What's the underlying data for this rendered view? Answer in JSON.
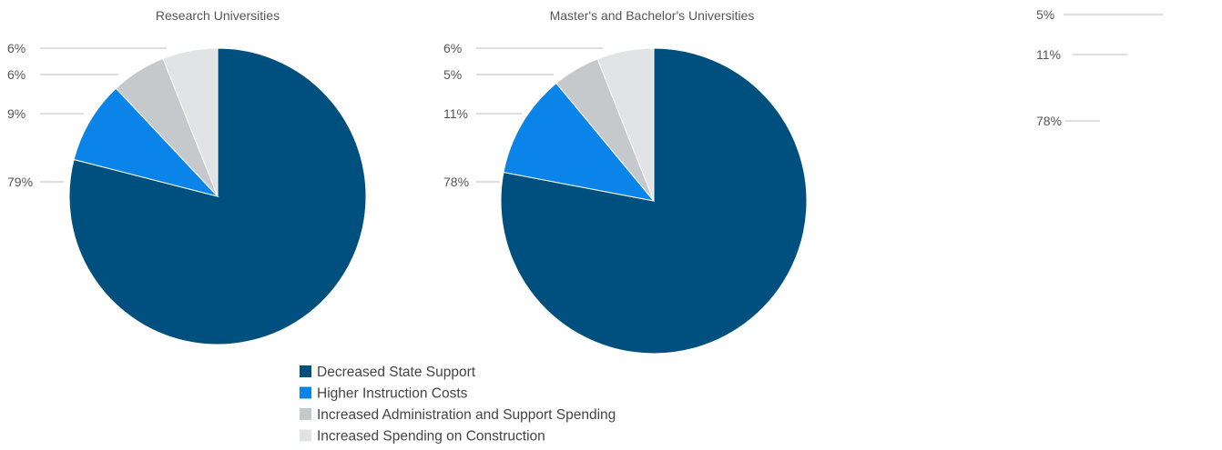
{
  "colors": {
    "decreased_state_support": "#00507f",
    "higher_instruction_costs": "#0a84e8",
    "increased_administration": "#c6c9cb",
    "increased_construction": "#e2e3e5",
    "leader_line": "#bdbdbd",
    "label_text": "#555555"
  },
  "legend": {
    "items": [
      {
        "label": "Decreased State Support",
        "color": "#00507f"
      },
      {
        "label": "Higher Instruction Costs",
        "color": "#0a84e8"
      },
      {
        "label": "Increased Administration and Support Spending",
        "color": "#c6c9cb"
      },
      {
        "label": "Increased Spending on Construction",
        "color": "#e2e3e5"
      }
    ]
  },
  "chart_data": [
    {
      "type": "pie",
      "title": "Research Universities",
      "categories": [
        "Decreased State Support",
        "Higher Instruction Costs",
        "Increased Administration and Support Spending",
        "Increased Spending on Construction"
      ],
      "values": [
        79,
        9,
        6,
        6
      ],
      "labels": [
        "79%",
        "9%",
        "6%",
        "6%"
      ]
    },
    {
      "type": "pie",
      "title": "Master's and Bachelor's Universities",
      "categories": [
        "Decreased State Support",
        "Higher Instruction Costs",
        "Increased Administration and Support Spending",
        "Increased Spending on Construction"
      ],
      "values": [
        78,
        11,
        5,
        6
      ],
      "labels": [
        "78%",
        "11%",
        "5%",
        "6%"
      ]
    },
    {
      "type": "pie",
      "title": "",
      "categories": [
        "Decreased State Support",
        "Higher Instruction Costs",
        "Increased Administration and Support Spending"
      ],
      "values": [
        78,
        11,
        5
      ],
      "labels": [
        "78%",
        "11%",
        "5%"
      ]
    }
  ]
}
